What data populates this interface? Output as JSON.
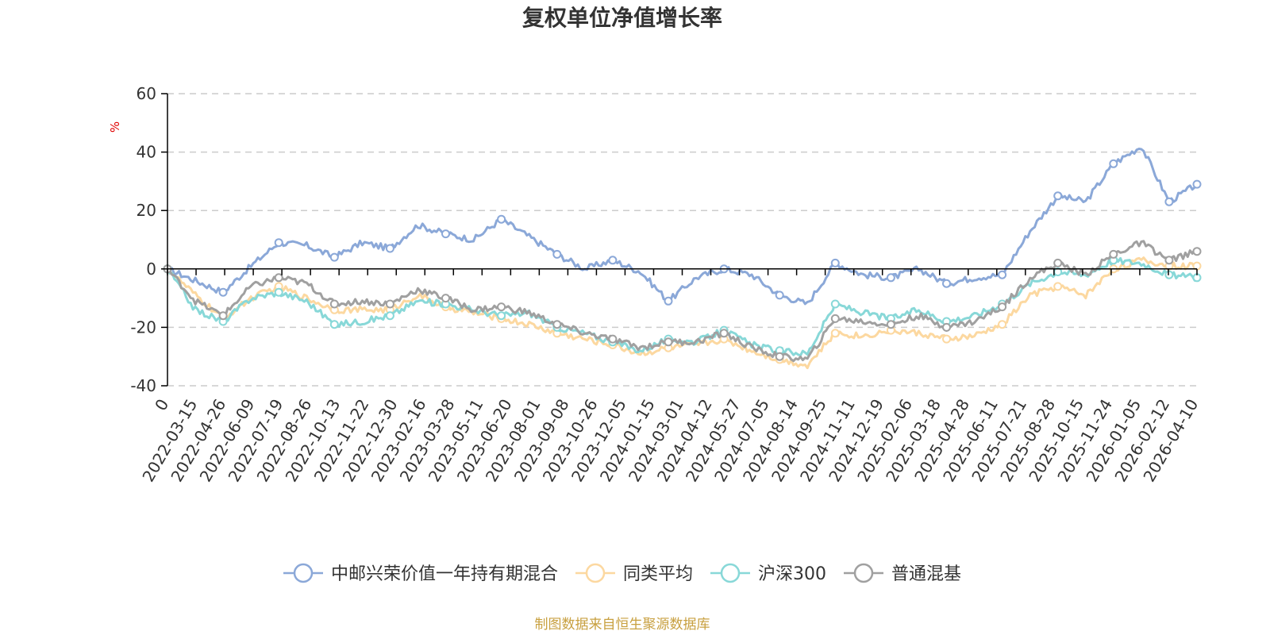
{
  "chart_data": {
    "type": "line",
    "title": "复权单位净值增长率",
    "unit": "%",
    "ylim": [
      -40,
      60
    ],
    "yticks": [
      "60",
      "40",
      "20",
      "0",
      "-20",
      "-40"
    ],
    "ytick_values": [
      60,
      40,
      20,
      0,
      -20,
      -40
    ],
    "grid": true,
    "legend_position": "bottom",
    "x_tick_labels": [
      "0",
      "2022-03-15",
      "2022-04-26",
      "2022-06-09",
      "2022-07-19",
      "2022-08-26",
      "2022-10-13",
      "2022-11-22",
      "2022-12-30",
      "2023-02-16",
      "2023-03-28",
      "2023-05-11",
      "2023-06-20",
      "2023-08-01",
      "2023-09-08",
      "2023-10-26",
      "2023-12-05",
      "2024-01-15",
      "2024-03-01",
      "2024-04-12",
      "2024-05-27",
      "2024-07-05",
      "2024-08-14",
      "2024-09-25",
      "2024-11-11",
      "2024-12-19",
      "2025-02-06",
      "2025-03-18",
      "2025-04-28",
      "2025-06-11",
      "2025-07-21",
      "2025-08-28",
      "2025-10-15",
      "2025-11-24",
      "2026-01-05",
      "2026-02-12",
      "2026-04-10"
    ],
    "series": [
      {
        "name": "中邮兴荣价值一年持有期混合",
        "color": "#8ba8d8",
        "values": [
          0,
          -4,
          -8,
          1,
          9,
          8,
          4,
          9,
          7,
          15,
          12,
          10,
          17,
          11,
          5,
          0,
          3,
          -1,
          -11,
          -3,
          0,
          -2,
          -9,
          -12,
          2,
          -2,
          -3,
          0,
          -5,
          -3,
          -2,
          13,
          25,
          23,
          36,
          42,
          23,
          29
        ]
      },
      {
        "name": "同类平均",
        "color": "#fcd8a0",
        "values": [
          0,
          -9,
          -17,
          -10,
          -6,
          -10,
          -14,
          -14,
          -14,
          -9,
          -13,
          -15,
          -17,
          -19,
          -22,
          -24,
          -26,
          -29,
          -27,
          -26,
          -24,
          -28,
          -31,
          -33,
          -22,
          -23,
          -21,
          -22,
          -24,
          -23,
          -19,
          -9,
          -6,
          -9,
          0,
          3,
          1,
          1
        ]
      },
      {
        "name": "沪深300",
        "color": "#88d8d8",
        "values": [
          0,
          -14,
          -18,
          -10,
          -8,
          -11,
          -19,
          -18,
          -16,
          -11,
          -12,
          -14,
          -16,
          -15,
          -20,
          -22,
          -25,
          -28,
          -24,
          -25,
          -21,
          -26,
          -28,
          -29,
          -12,
          -15,
          -17,
          -14,
          -18,
          -16,
          -12,
          -5,
          -1,
          -2,
          3,
          2,
          -2,
          -3
        ]
      },
      {
        "name": "普通混基",
        "color": "#a0a0a0",
        "values": [
          0,
          -11,
          -16,
          -6,
          -3,
          -5,
          -12,
          -11,
          -12,
          -7,
          -10,
          -14,
          -13,
          -15,
          -19,
          -22,
          -24,
          -27,
          -25,
          -25,
          -22,
          -27,
          -30,
          -31,
          -17,
          -18,
          -19,
          -16,
          -20,
          -18,
          -13,
          -3,
          2,
          -2,
          5,
          9,
          3,
          6
        ]
      }
    ]
  },
  "source_note": "制图数据来自恒生聚源数据库"
}
